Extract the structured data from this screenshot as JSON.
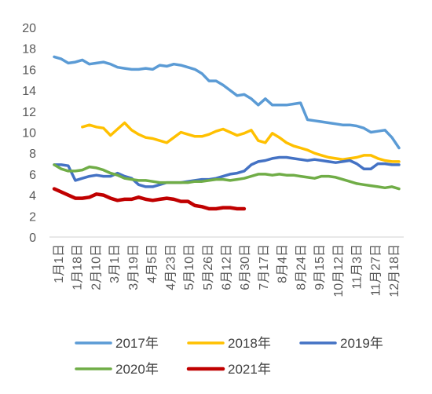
{
  "chart_data": {
    "type": "line",
    "title": "",
    "xlabel": "",
    "ylabel": "",
    "ylim": [
      0,
      20
    ],
    "yticks": [
      0,
      2,
      4,
      6,
      8,
      10,
      12,
      14,
      16,
      18,
      20
    ],
    "grid": false,
    "legend_position": "bottom",
    "x_tick_labels": [
      "1月1日",
      "1月18日",
      "2月10日",
      "3月1日",
      "3月19日",
      "4月5日",
      "4月23日",
      "5月10日",
      "5月26日",
      "6月12日",
      "6月30日",
      "7月17日",
      "8月4日",
      "8月24日",
      "9月15日",
      "10月12日",
      "11月3日",
      "11月27日",
      "12月18日"
    ],
    "series": [
      {
        "name": "2017年",
        "color": "#5B9BD5",
        "values": [
          17.2,
          17.0,
          16.6,
          16.7,
          16.9,
          16.5,
          16.6,
          16.7,
          16.5,
          16.2,
          16.1,
          16.0,
          16.0,
          16.1,
          16.0,
          16.4,
          16.3,
          16.5,
          16.4,
          16.2,
          16.0,
          15.6,
          14.9,
          14.9,
          14.5,
          14.0,
          13.5,
          13.6,
          13.2,
          12.6,
          13.2,
          12.6,
          12.6,
          12.6,
          12.7,
          12.8,
          11.2,
          11.1,
          11.0,
          10.9,
          10.8,
          10.7,
          10.7,
          10.6,
          10.4,
          10.0,
          10.1,
          10.2,
          9.5,
          8.5
        ]
      },
      {
        "name": "2018年",
        "color": "#FFC000",
        "values": [
          null,
          null,
          null,
          null,
          10.5,
          10.7,
          10.5,
          10.4,
          9.7,
          10.3,
          10.9,
          10.2,
          9.8,
          9.5,
          9.4,
          9.2,
          9.0,
          9.5,
          10.0,
          9.8,
          9.6,
          9.6,
          9.8,
          10.1,
          10.3,
          10.0,
          9.7,
          9.9,
          10.2,
          9.2,
          9.0,
          9.9,
          9.5,
          9.0,
          8.7,
          8.5,
          8.3,
          8.0,
          7.8,
          7.6,
          7.5,
          7.4,
          7.5,
          7.6,
          7.8,
          7.8,
          7.5,
          7.3,
          7.2,
          7.2
        ]
      },
      {
        "name": "2019年",
        "color": "#4472C4",
        "values": [
          6.9,
          6.9,
          6.8,
          5.4,
          5.6,
          5.8,
          5.9,
          5.8,
          5.8,
          6.1,
          5.8,
          5.6,
          5.0,
          4.8,
          4.8,
          5.0,
          5.2,
          5.2,
          5.2,
          5.3,
          5.4,
          5.5,
          5.5,
          5.6,
          5.8,
          6.0,
          6.1,
          6.3,
          6.9,
          7.2,
          7.3,
          7.5,
          7.6,
          7.6,
          7.5,
          7.4,
          7.3,
          7.4,
          7.3,
          7.2,
          7.1,
          7.2,
          7.3,
          7.0,
          6.5,
          6.5,
          7.0,
          7.0,
          6.9,
          6.9
        ]
      },
      {
        "name": "2020年",
        "color": "#70AD47",
        "values": [
          6.9,
          6.5,
          6.3,
          6.3,
          6.4,
          6.7,
          6.6,
          6.4,
          6.1,
          5.9,
          5.6,
          5.5,
          5.4,
          5.4,
          5.3,
          5.2,
          5.2,
          5.2,
          5.2,
          5.2,
          5.3,
          5.3,
          5.4,
          5.5,
          5.5,
          5.4,
          5.5,
          5.6,
          5.8,
          6.0,
          6.0,
          5.9,
          6.0,
          5.9,
          5.9,
          5.8,
          5.7,
          5.6,
          5.8,
          5.8,
          5.7,
          5.5,
          5.3,
          5.1,
          5.0,
          4.9,
          4.8,
          4.7,
          4.8,
          4.6
        ]
      },
      {
        "name": "2021年",
        "color": "#C00000",
        "values": [
          4.6,
          4.3,
          4.0,
          3.7,
          3.7,
          3.8,
          4.1,
          4.0,
          3.7,
          3.5,
          3.6,
          3.6,
          3.8,
          3.6,
          3.5,
          3.6,
          3.7,
          3.6,
          3.4,
          3.4,
          3.0,
          2.9,
          2.7,
          2.7,
          2.8,
          2.8,
          2.7,
          2.7
        ]
      }
    ]
  }
}
